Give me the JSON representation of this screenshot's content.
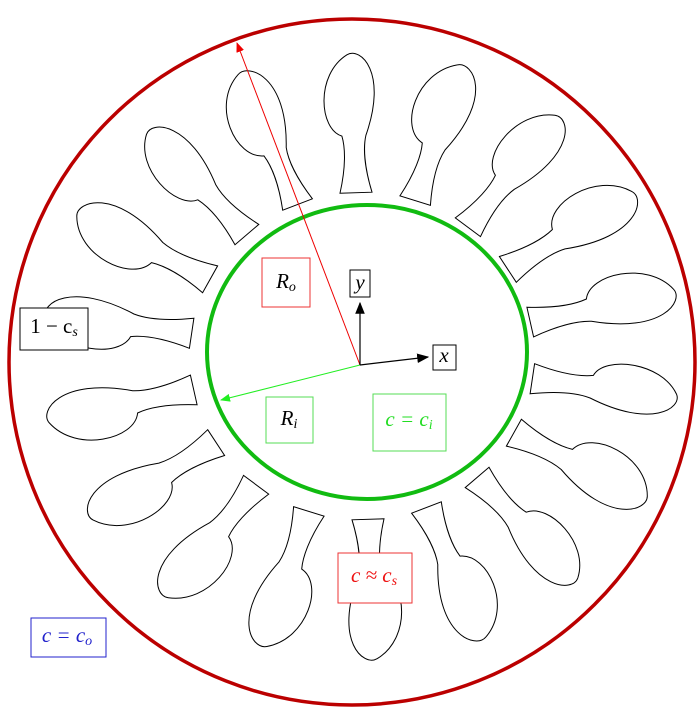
{
  "labels": {
    "outer_radius": {
      "main": "R",
      "sub": "o"
    },
    "y_axis": "y",
    "x_axis": "x",
    "solid_phase": {
      "main": "1 − c",
      "sub": "s"
    },
    "inner_radius": {
      "main": "R",
      "sub": "i"
    },
    "inner_condition": {
      "main": "c = c",
      "sub": "i"
    },
    "interface_condition": {
      "main": "c ≈ c",
      "sub": "s"
    },
    "outer_condition": {
      "main": "c = c",
      "sub": "o"
    }
  }
}
